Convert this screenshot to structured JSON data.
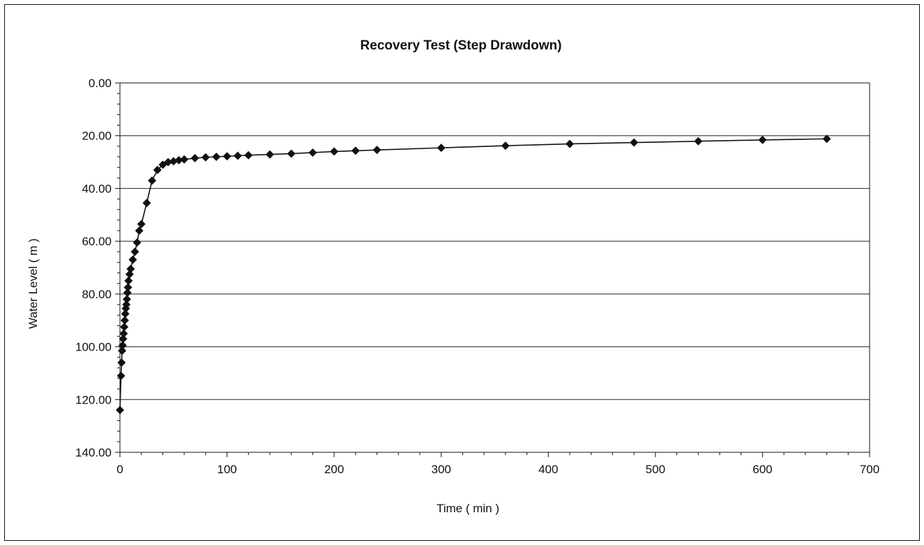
{
  "chart_data": {
    "type": "line",
    "title": "Recovery Test (Step Drawdown)",
    "xlabel": "Time ( min )",
    "ylabel": "Water Level ( m )",
    "xlim": [
      0,
      700
    ],
    "ylim": [
      0,
      140
    ],
    "y_inverted": true,
    "x_ticks": [
      "0",
      "100",
      "200",
      "300",
      "400",
      "500",
      "600",
      "700"
    ],
    "y_ticks": [
      "0.00",
      "20.00",
      "40.00",
      "60.00",
      "80.00",
      "100.00",
      "120.00",
      "140.00"
    ],
    "grid": "horizontal",
    "legend": "none",
    "marker": "diamond",
    "colors": {
      "line": "#111111",
      "marker": "#111111",
      "grid": "#222222"
    },
    "series": [
      {
        "x": [
          0,
          1,
          1.5,
          2,
          2.5,
          3,
          3.5,
          4,
          4.5,
          5,
          5.5,
          6,
          6.5,
          7,
          7.5,
          8,
          9,
          10,
          12,
          14,
          16,
          18,
          20,
          25,
          30,
          35,
          40,
          45,
          50,
          55,
          60,
          70,
          80,
          90,
          100,
          110,
          120,
          140,
          160,
          180,
          200,
          220,
          240,
          300,
          360,
          420,
          480,
          540,
          600,
          660
        ],
        "y": [
          124.0,
          111.0,
          106.0,
          101.5,
          99.5,
          97.0,
          95.0,
          92.5,
          90.0,
          87.5,
          85.5,
          84.0,
          82.0,
          79.5,
          77.5,
          75.0,
          72.5,
          70.5,
          67.0,
          64.0,
          60.5,
          56.0,
          53.5,
          45.5,
          37.0,
          33.0,
          31.0,
          30.0,
          29.7,
          29.3,
          29.0,
          28.5,
          28.2,
          28.0,
          27.8,
          27.6,
          27.4,
          27.1,
          26.8,
          26.4,
          26.0,
          25.7,
          25.4,
          24.6,
          23.8,
          23.1,
          22.6,
          22.1,
          21.6,
          21.2
        ]
      }
    ]
  }
}
